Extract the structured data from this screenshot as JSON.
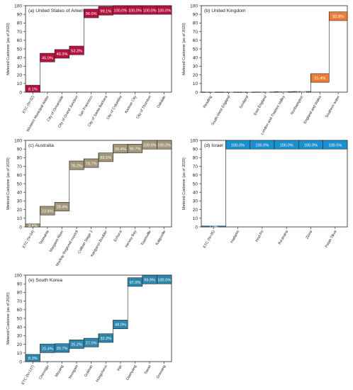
{
  "chart_data": [
    {
      "type": "bar",
      "panel": "(a) United States of America",
      "ylabel": "Metered Customer (as of 2020)",
      "ylim": [
        0,
        100
      ],
      "yticks": [
        0,
        10,
        20,
        30,
        40,
        50,
        60,
        70,
        80,
        90,
        100
      ],
      "categories": [
        "ETC (N=32)",
        "Western Municipal Water",
        "City of Oceanside",
        "City of Grand Junction",
        "San Francisco",
        "City of Santa Barbara",
        "City of Columbia",
        "Kansas City",
        "City of Thornton",
        "Oakdale"
      ],
      "values": [
        8.1,
        45.0,
        49.3,
        53.3,
        96.0,
        99.1,
        100.0,
        100.0,
        100.0,
        100.0
      ],
      "labels": [
        "8.1%",
        "45.0%",
        "49.3%",
        "53.3%",
        "96.0%",
        "99.1%",
        "100.0%",
        "100.0%",
        "100.0%",
        "100.0%"
      ],
      "color": "#b5123f"
    },
    {
      "type": "bar",
      "panel": "(b) United Kingdom",
      "ylabel": "Metered Customer (as of 2020)",
      "ylim": [
        0,
        100
      ],
      "yticks": [
        0,
        10,
        20,
        30,
        40,
        50,
        60,
        70,
        80,
        90,
        100
      ],
      "categories": [
        "Reading",
        "South-West England",
        "Scotland",
        "East England",
        "London and Thames Valley",
        "Northampton",
        "England and Wales",
        "Southern water"
      ],
      "values": [
        0.1,
        0.1,
        0.1,
        0.2,
        0.5,
        0.8,
        21.4,
        92.8
      ],
      "labels": [
        "0.1%",
        "0.1%",
        "0.1%",
        "0.2%",
        "0.5%",
        "0.8%",
        "21.4%",
        "92.8%"
      ],
      "color": "#ec7e35"
    },
    {
      "type": "bar",
      "panel": "(c) Australia",
      "ylabel": "Metered Customer (as of 2020)",
      "ylim": [
        0,
        100
      ],
      "yticks": [
        0,
        10,
        20,
        30,
        40,
        50,
        60,
        70,
        80,
        90,
        100
      ],
      "categories": [
        "ETC (N=34)",
        "Tasmania",
        "Margaret River",
        "Mackay Regional council",
        "Coliban Stage 2",
        "Kangaroo Boulder",
        "Echuca",
        "Hervey Bay",
        "Townsville",
        "Kalgoorlie"
      ],
      "values": [
        3.4,
        23.8,
        28.4,
        76.2,
        78.7,
        85.5,
        95.4,
        95.7,
        100.0,
        100.0
      ],
      "labels": [
        "3.4%",
        "23.8%",
        "28.4%",
        "76.2%",
        "78.7%",
        "85.5%",
        "95.4%",
        "95.7%",
        "100.0%",
        "100.0%"
      ],
      "color": "#a3977a"
    },
    {
      "type": "bar",
      "panel": "(d) Israel",
      "ylabel": "Metered Customer (as of 2020)",
      "ylim": [
        0,
        100
      ],
      "yticks": [
        0,
        10,
        20,
        30,
        40,
        50,
        60,
        70,
        80,
        90,
        100
      ],
      "categories": [
        "ETC (N=35)",
        "Hadarim",
        "Hod-Pri",
        "Ra'anana",
        "Ziona",
        "Petah Tikva"
      ],
      "values": [
        1.0,
        100.0,
        100.0,
        100.0,
        100.0,
        100.0
      ],
      "labels": [
        "1.0%",
        "100.0%",
        "100.0%",
        "100.0%",
        "100.0%",
        "100.0%"
      ],
      "color": "#1b8fd2"
    },
    {
      "type": "bar",
      "panel": "(e) South Korea",
      "ylabel": "Metered Customer (as of 2020)",
      "ylim": [
        0,
        100
      ],
      "yticks": [
        0,
        10,
        20,
        30,
        40,
        50,
        60,
        70,
        80,
        90,
        100
      ],
      "categories": [
        "ETC (N=137)",
        "Cheongju",
        "Miryang",
        "Yeongam",
        "Gokhan",
        "Hongcheon",
        "Inje",
        "Daenyang",
        "Taean",
        "Goesang"
      ],
      "values": [
        8.3,
        20.4,
        20.7,
        25.2,
        27.0,
        32.2,
        48.0,
        97.0,
        99.9,
        100.0
      ],
      "labels": [
        "8.3%",
        "20.4%",
        "20.7%",
        "25.2%",
        "27.0%",
        "32.2%",
        "48.0%",
        "97.0%",
        "99.9%",
        "100.0%"
      ],
      "color": "#2e86ad"
    }
  ]
}
